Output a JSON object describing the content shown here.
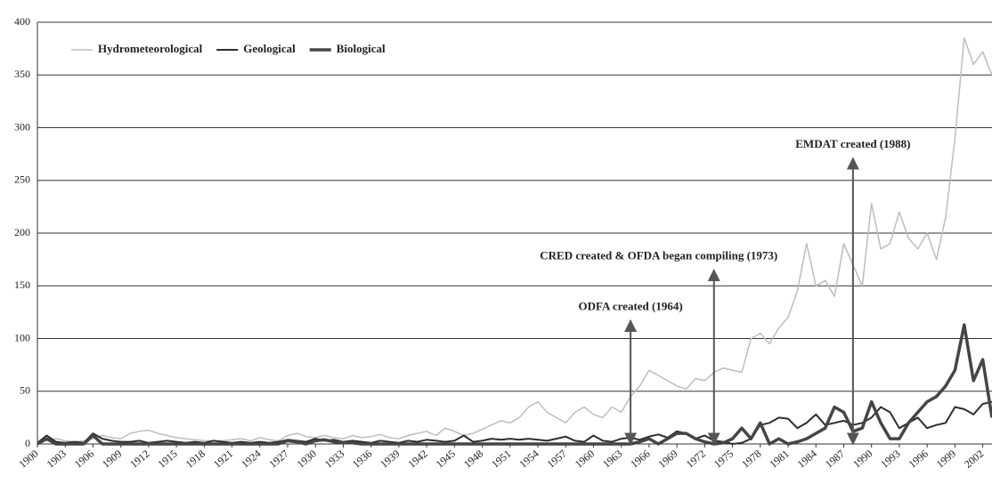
{
  "chart_data": {
    "type": "line",
    "x": [
      1900,
      1901,
      1902,
      1903,
      1904,
      1905,
      1906,
      1907,
      1908,
      1909,
      1910,
      1911,
      1912,
      1913,
      1914,
      1915,
      1916,
      1917,
      1918,
      1919,
      1920,
      1921,
      1922,
      1923,
      1924,
      1925,
      1926,
      1927,
      1928,
      1929,
      1930,
      1931,
      1932,
      1933,
      1934,
      1935,
      1936,
      1937,
      1938,
      1939,
      1940,
      1941,
      1942,
      1943,
      1944,
      1945,
      1946,
      1947,
      1948,
      1949,
      1950,
      1951,
      1952,
      1953,
      1954,
      1955,
      1956,
      1957,
      1958,
      1959,
      1960,
      1961,
      1962,
      1963,
      1964,
      1965,
      1966,
      1967,
      1968,
      1969,
      1970,
      1971,
      1972,
      1973,
      1974,
      1975,
      1976,
      1977,
      1978,
      1979,
      1980,
      1981,
      1982,
      1983,
      1984,
      1985,
      1986,
      1987,
      1988,
      1989,
      1990,
      1991,
      1992,
      1993,
      1994,
      1995,
      1996,
      1997,
      1998,
      1999,
      2000,
      2001,
      2002,
      2003
    ],
    "series": [
      {
        "name": "Hydrometeorological",
        "color": "#bdbdbd",
        "width": 1.5,
        "values": [
          2,
          3,
          5,
          3,
          2,
          3,
          5,
          8,
          6,
          5,
          10,
          12,
          13,
          10,
          8,
          6,
          5,
          4,
          3,
          3,
          3,
          4,
          5,
          3,
          6,
          4,
          3,
          8,
          10,
          7,
          6,
          8,
          6,
          5,
          8,
          6,
          7,
          9,
          6,
          5,
          8,
          10,
          12,
          8,
          15,
          12,
          8,
          10,
          14,
          18,
          22,
          20,
          25,
          35,
          40,
          30,
          25,
          20,
          30,
          35,
          28,
          25,
          35,
          30,
          45,
          55,
          70,
          65,
          60,
          55,
          52,
          62,
          60,
          68,
          72,
          70,
          68,
          100,
          105,
          95,
          110,
          120,
          145,
          190,
          150,
          155,
          140,
          190,
          170,
          150,
          228,
          185,
          190,
          220,
          195,
          185,
          200,
          175,
          215,
          290,
          385,
          360,
          372,
          350
        ]
      },
      {
        "name": "Geological",
        "color": "#2e2e2e",
        "width": 2,
        "values": [
          1,
          8,
          2,
          1,
          2,
          1,
          10,
          5,
          3,
          2,
          2,
          3,
          1,
          2,
          3,
          2,
          1,
          2,
          1,
          3,
          2,
          1,
          2,
          1,
          2,
          1,
          2,
          4,
          3,
          2,
          5,
          3,
          4,
          2,
          3,
          2,
          1,
          3,
          2,
          1,
          3,
          2,
          4,
          3,
          2,
          3,
          8,
          2,
          3,
          5,
          4,
          5,
          4,
          5,
          4,
          3,
          5,
          7,
          3,
          2,
          8,
          3,
          2,
          5,
          6,
          4,
          7,
          9,
          6,
          12,
          10,
          5,
          8,
          3,
          2,
          0,
          1,
          5,
          18,
          20,
          25,
          24,
          15,
          20,
          28,
          18,
          20,
          22,
          18,
          20,
          25,
          35,
          30,
          15,
          20,
          25,
          15,
          18,
          20,
          35,
          33,
          28,
          38,
          40
        ]
      },
      {
        "name": "Biological",
        "color": "#454545",
        "width": 3.5,
        "values": [
          0,
          5,
          0,
          0,
          0,
          0,
          8,
          0,
          0,
          0,
          0,
          0,
          0,
          0,
          0,
          0,
          0,
          0,
          0,
          0,
          0,
          0,
          0,
          0,
          0,
          0,
          0,
          3,
          2,
          0,
          3,
          4,
          2,
          1,
          1,
          0,
          0,
          0,
          0,
          0,
          0,
          0,
          0,
          0,
          0,
          0,
          0,
          0,
          0,
          0,
          0,
          0,
          0,
          0,
          0,
          0,
          0,
          0,
          0,
          0,
          0,
          0,
          0,
          0,
          0,
          2,
          5,
          0,
          5,
          10,
          10,
          5,
          2,
          0,
          1,
          5,
          15,
          5,
          20,
          0,
          5,
          0,
          2,
          5,
          10,
          15,
          35,
          30,
          12,
          15,
          40,
          20,
          5,
          5,
          20,
          30,
          40,
          45,
          55,
          70,
          113,
          60,
          80,
          25
        ]
      }
    ],
    "xlim": [
      1900,
      2003
    ],
    "xticks": [
      1900,
      1903,
      1906,
      1909,
      1912,
      1915,
      1918,
      1921,
      1924,
      1927,
      1930,
      1933,
      1936,
      1939,
      1942,
      1945,
      1948,
      1951,
      1954,
      1957,
      1960,
      1963,
      1966,
      1969,
      1972,
      1975,
      1978,
      1981,
      1984,
      1987,
      1990,
      1993,
      1996,
      1999,
      2002
    ],
    "ylim": [
      0,
      400
    ],
    "yticks": [
      0,
      50,
      100,
      150,
      200,
      250,
      300,
      350,
      400
    ],
    "grid": true,
    "legend": "top-left",
    "annotations": [
      {
        "text": "ODFA created (1964)",
        "x": 1964,
        "y": 117
      },
      {
        "text": "CRED created & OFDA began compiling (1973)",
        "x": 1973,
        "y": 165
      },
      {
        "text": "EMDAT created (1988)",
        "x": 1988,
        "y": 271
      }
    ]
  }
}
